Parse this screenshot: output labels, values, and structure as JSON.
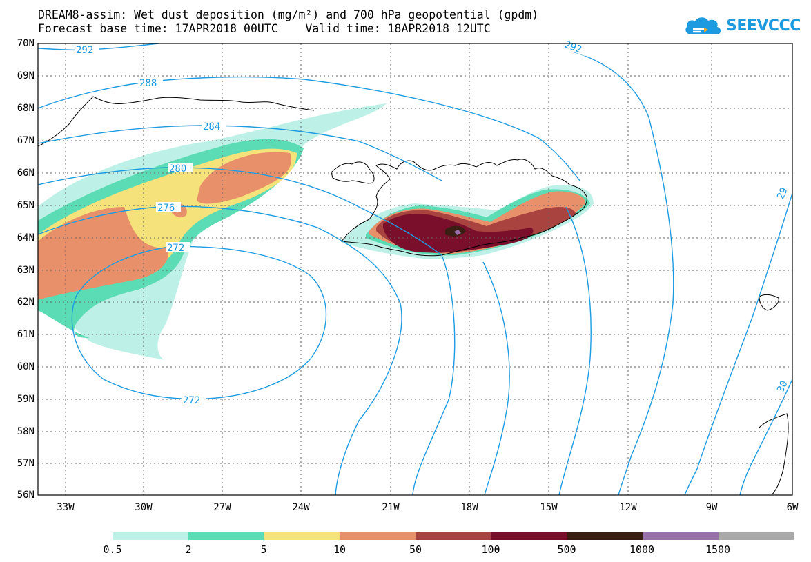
{
  "title_line1": "DREAM8-assim: Wet dust deposition (mg/m²) and 700 hPa geopotential (gpdm)",
  "title_line2": "Forecast base time: 17APR2018 00UTC    Valid time: 18APR2018 12UTC",
  "logo": {
    "text": "SEEVCCC",
    "icon": "cloud-icon",
    "color": "#1e9be0"
  },
  "latitudes": [
    "70N",
    "69N",
    "68N",
    "67N",
    "66N",
    "65N",
    "64N",
    "63N",
    "62N",
    "61N",
    "60N",
    "59N",
    "58N",
    "57N",
    "56N"
  ],
  "longitudes": [
    "33W",
    "30W",
    "27W",
    "24W",
    "21W",
    "18W",
    "15W",
    "12W",
    "9W",
    "6W"
  ],
  "contour_labels": [
    "292",
    "288",
    "284",
    "280",
    "276",
    "272",
    "272",
    "292",
    "29",
    "30"
  ],
  "legend": {
    "colors": [
      "#bdf0e6",
      "#5cdcb4",
      "#f6e27a",
      "#e8906a",
      "#a8433f",
      "#7a0f2c",
      "#3a1e14",
      "#9a70a8",
      "#a9a9a9"
    ],
    "labels": [
      "0.5",
      "2",
      "5",
      "10",
      "50",
      "100",
      "500",
      "1000",
      "1500"
    ]
  },
  "colors": {
    "contour": "#1e9be0",
    "coast": "#000000",
    "grid": "#666666"
  }
}
